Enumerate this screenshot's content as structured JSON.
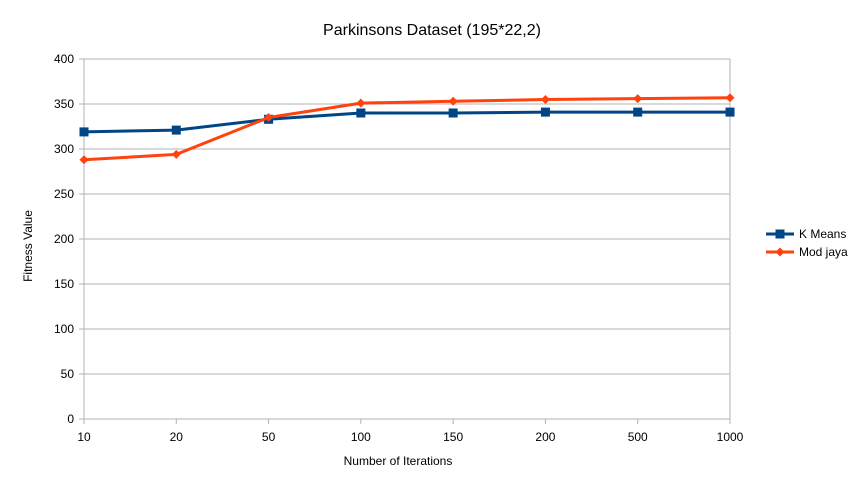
{
  "chart_data": {
    "type": "line",
    "title": "Parkinsons Dataset (195*22,2)",
    "xlabel": "Number of Iterations",
    "ylabel": "Fitness Value",
    "categories": [
      "10",
      "20",
      "50",
      "100",
      "150",
      "200",
      "500",
      "1000"
    ],
    "ylim": [
      0,
      400
    ],
    "yticks": [
      0,
      50,
      100,
      150,
      200,
      250,
      300,
      350,
      400
    ],
    "grid": true,
    "legend_position": "right",
    "series": [
      {
        "name": "K Means",
        "color": "#004586",
        "marker": "square",
        "values": [
          319,
          321,
          333,
          340,
          340,
          341,
          341,
          341
        ]
      },
      {
        "name": "Mod jaya",
        "color": "#ff420e",
        "marker": "diamond",
        "values": [
          288,
          294,
          335,
          351,
          353,
          355,
          356,
          357
        ]
      }
    ]
  }
}
